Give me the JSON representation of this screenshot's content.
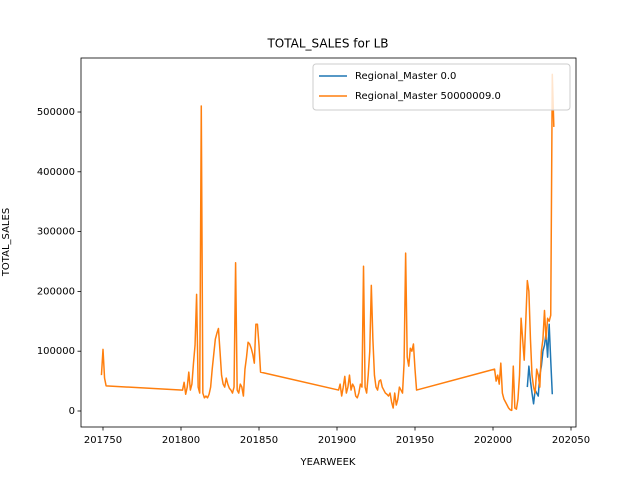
{
  "chart_data": {
    "type": "line",
    "title": "TOTAL_SALES for LB",
    "xlabel": "YEARWEEK",
    "ylabel": "TOTAL_SALES",
    "xlim": [
      201735.9,
      202053.2
    ],
    "xticks": [
      201750,
      201800,
      201850,
      201900,
      201950,
      202000,
      202050
    ],
    "ylim": [
      -26756,
      590300
    ],
    "yticks": [
      0,
      100000,
      200000,
      300000,
      400000,
      500000
    ],
    "legend": "upper right",
    "grid": false,
    "series": [
      {
        "name": "Regional_Master 0.0",
        "color": "#1f77b4",
        "x": [
          202022,
          202023,
          202024,
          202025,
          202026,
          202027,
          202028,
          202029,
          202030,
          202031,
          202032,
          202033,
          202034,
          202035,
          202036,
          202037,
          202038
        ],
        "values": [
          40000,
          75000,
          50000,
          30000,
          12000,
          35000,
          30000,
          25000,
          60000,
          75000,
          100000,
          110000,
          130000,
          90000,
          145000,
          85000,
          28000
        ]
      },
      {
        "name": "Regional_Master 50000009.0",
        "color": "#ff7f0e",
        "x": [
          201749,
          201750,
          201751,
          201752,
          201801,
          201802,
          201803,
          201804,
          201805,
          201806,
          201807,
          201808,
          201809,
          201810,
          201811,
          201812,
          201813,
          201814,
          201815,
          201816,
          201817,
          201818,
          201819,
          201820,
          201821,
          201822,
          201823,
          201824,
          201825,
          201826,
          201827,
          201828,
          201829,
          201830,
          201831,
          201832,
          201833,
          201834,
          201835,
          201836,
          201837,
          201838,
          201839,
          201840,
          201841,
          201842,
          201843,
          201844,
          201845,
          201846,
          201847,
          201848,
          201849,
          201850,
          201851,
          201901,
          201902,
          201903,
          201904,
          201905,
          201906,
          201907,
          201908,
          201909,
          201910,
          201911,
          201912,
          201913,
          201914,
          201915,
          201916,
          201917,
          201918,
          201919,
          201920,
          201921,
          201922,
          201923,
          201924,
          201925,
          201926,
          201927,
          201928,
          201929,
          201930,
          201931,
          201932,
          201933,
          201934,
          201935,
          201936,
          201937,
          201938,
          201939,
          201940,
          201941,
          201942,
          201943,
          201944,
          201945,
          201946,
          201947,
          201948,
          201949,
          201950,
          201951,
          202001,
          202002,
          202003,
          202004,
          202005,
          202006,
          202007,
          202008,
          202009,
          202010,
          202011,
          202012,
          202013,
          202014,
          202015,
          202016,
          202017,
          202018,
          202019,
          202020,
          202021,
          202022,
          202023,
          202024,
          202025,
          202026,
          202027,
          202028,
          202029,
          202030,
          202031,
          202032,
          202033,
          202034,
          202035,
          202036,
          202037,
          202038,
          202039
        ],
        "values": [
          60000,
          103000,
          55000,
          42000,
          35000,
          48000,
          28000,
          40000,
          65000,
          35000,
          45000,
          80000,
          110000,
          195000,
          40000,
          30000,
          510000,
          30000,
          22000,
          25000,
          22000,
          28000,
          40000,
          70000,
          95000,
          120000,
          130000,
          138000,
          100000,
          60000,
          45000,
          40000,
          55000,
          45000,
          38000,
          35000,
          30000,
          40000,
          248000,
          35000,
          30000,
          45000,
          40000,
          25000,
          70000,
          90000,
          115000,
          112000,
          105000,
          95000,
          80000,
          145000,
          145000,
          110000,
          65000,
          35000,
          45000,
          25000,
          40000,
          58000,
          30000,
          40000,
          60000,
          35000,
          45000,
          40000,
          25000,
          22000,
          30000,
          45000,
          40000,
          242000,
          40000,
          30000,
          60000,
          100000,
          210000,
          120000,
          60000,
          40000,
          35000,
          50000,
          52000,
          40000,
          35000,
          30000,
          28000,
          25000,
          30000,
          15000,
          5000,
          30000,
          10000,
          20000,
          40000,
          35000,
          30000,
          80000,
          264000,
          90000,
          75000,
          105000,
          100000,
          112000,
          70000,
          35000,
          70000,
          50000,
          60000,
          45000,
          80000,
          30000,
          20000,
          15000,
          10000,
          5000,
          2000,
          1000,
          75000,
          5000,
          3000,
          20000,
          60000,
          155000,
          120000,
          85000,
          150000,
          218000,
          200000,
          120000,
          60000,
          40000,
          30000,
          70000,
          60000,
          40000,
          100000,
          120000,
          168000,
          120000,
          155000,
          150000,
          160000,
          563000,
          475000
        ]
      }
    ]
  }
}
